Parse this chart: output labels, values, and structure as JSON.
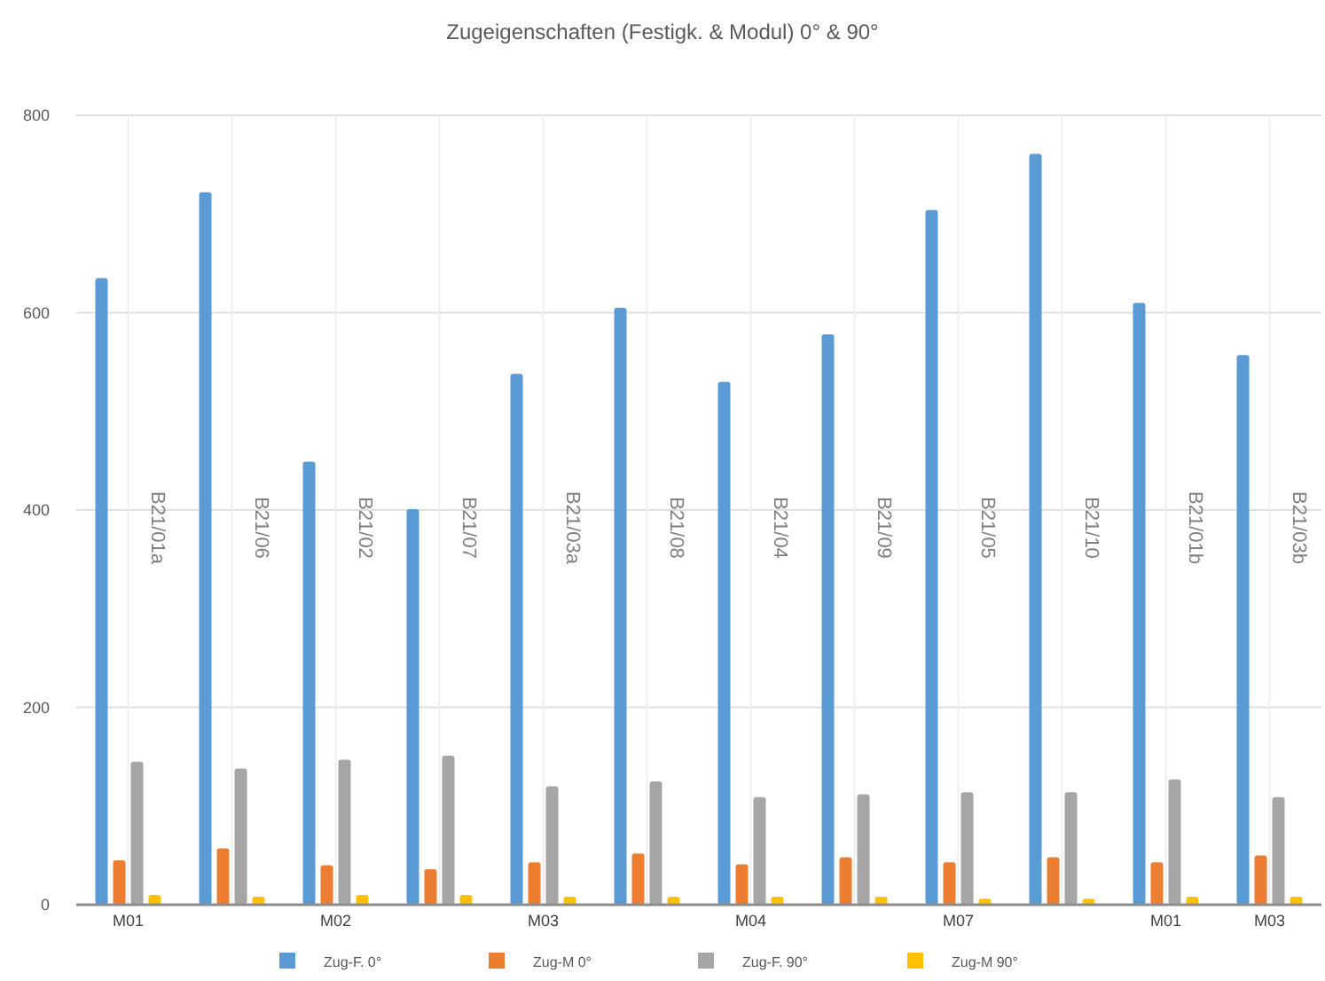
{
  "chart_data": {
    "type": "bar",
    "title": "Zugeigenschaften (Festigk. & Modul) 0° & 90°",
    "categories": [
      "M01",
      null,
      "M02",
      null,
      "M03",
      null,
      "M04",
      null,
      "M07",
      null,
      "M01",
      "M03"
    ],
    "series": [
      {
        "name": "Zug-F. 0°",
        "color": "#5b9bd5",
        "values": [
          635,
          722,
          449,
          401,
          538,
          605,
          530,
          578,
          704,
          761,
          610,
          557
        ]
      },
      {
        "name": "Zug-M 0°",
        "color": "#ed7d31",
        "values": [
          45,
          57,
          40,
          36,
          43,
          52,
          41,
          48,
          43,
          48,
          43,
          50
        ]
      },
      {
        "name": "Zug-F. 90°",
        "color": "#a5a5a5",
        "values": [
          145,
          138,
          147,
          151,
          120,
          125,
          109,
          112,
          114,
          114,
          127,
          109
        ]
      },
      {
        "name": "Zug-M 90°",
        "color": "#ffc000",
        "values": [
          10,
          8,
          10,
          10,
          8,
          8,
          8,
          8,
          6,
          6,
          8,
          8
        ]
      }
    ],
    "annotations": [
      "B21/01a",
      "B21/06",
      "B21/02",
      "B21/07",
      "B21/03a",
      "B21/08",
      "B21/04",
      "B21/09",
      "B21/05",
      "B21/10",
      "B21/01b",
      "B21/03b"
    ],
    "ylim": [
      0,
      800
    ],
    "yticks": [
      0,
      200,
      400,
      600,
      800
    ],
    "grid": true,
    "legend": "bottom"
  }
}
